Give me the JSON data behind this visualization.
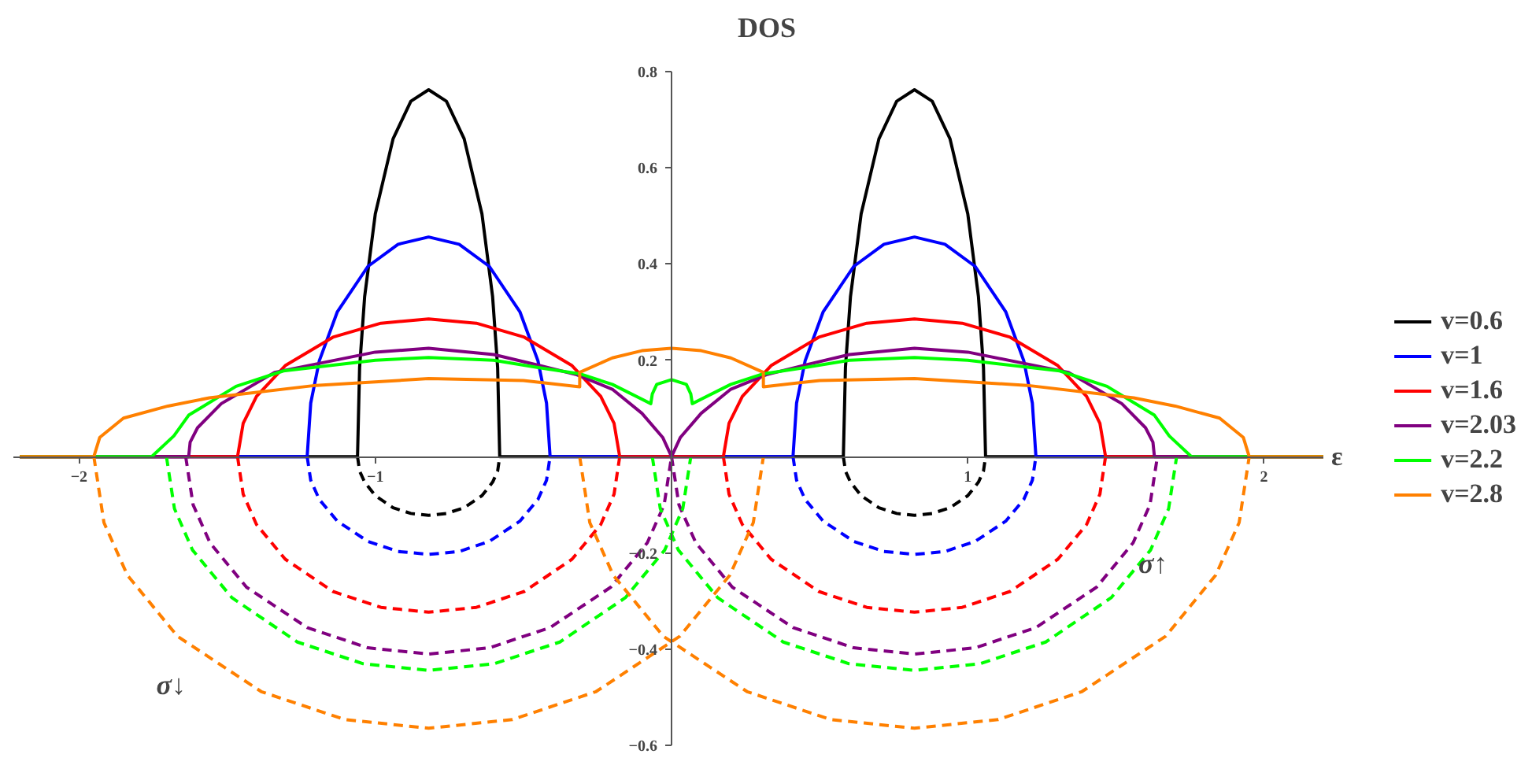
{
  "chart_data": {
    "type": "line",
    "xlabel": "ε",
    "ylabel": "DOS",
    "xlim": [
      -2.22,
      2.2
    ],
    "ylim": [
      -0.6,
      0.8
    ],
    "xticks": [
      {
        "value": -2,
        "label": "−2"
      },
      {
        "value": -1,
        "label": "−1"
      },
      1,
      2
    ],
    "yticks": [
      {
        "value": -0.6,
        "label": "−0.6"
      },
      {
        "value": -0.4,
        "label": "−0.4"
      },
      {
        "value": -0.2,
        "label": "−0.2"
      },
      0.2,
      0.4,
      0.6,
      0.8
    ],
    "legend": "right",
    "marker": "none",
    "annotations": [
      "σ↓",
      "σ↑"
    ],
    "series": [
      {
        "name": "v=0.6",
        "color": "#000000",
        "line_style": "solid",
        "x": [
          -2.2,
          -1.06,
          -1.053,
          -1.036,
          -1.0,
          -0.94,
          -0.88,
          -0.82,
          -0.76,
          -0.7,
          -0.64,
          -0.604,
          -0.587,
          -0.58,
          0.58,
          0.587,
          0.604,
          0.64,
          0.7,
          0.76,
          0.82,
          0.88,
          0.94,
          1.0,
          1.036,
          1.053,
          1.06,
          2.2
        ],
        "values": [
          0,
          0,
          0.185,
          0.332,
          0.504,
          0.66,
          0.738,
          0.762,
          0.738,
          0.66,
          0.504,
          0.332,
          0.185,
          0,
          0,
          0.185,
          0.332,
          0.504,
          0.66,
          0.738,
          0.762,
          0.738,
          0.66,
          0.504,
          0.332,
          0.185,
          0,
          0
        ]
      },
      {
        "name": "v=1",
        "color": "#0000ff",
        "line_style": "solid",
        "x": [
          -2.2,
          -1.23,
          -1.218,
          -1.189,
          -1.128,
          -1.025,
          -0.923,
          -0.82,
          -0.717,
          -0.615,
          -0.512,
          -0.451,
          -0.422,
          -0.41,
          0.41,
          0.422,
          0.451,
          0.512,
          0.615,
          0.717,
          0.82,
          0.923,
          1.025,
          1.128,
          1.189,
          1.218,
          1.23,
          2.2
        ],
        "values": [
          0,
          0,
          0.111,
          0.199,
          0.301,
          0.395,
          0.441,
          0.456,
          0.441,
          0.395,
          0.301,
          0.199,
          0.111,
          0,
          0,
          0.111,
          0.199,
          0.301,
          0.395,
          0.441,
          0.456,
          0.441,
          0.395,
          0.301,
          0.199,
          0.111,
          0,
          0
        ]
      },
      {
        "name": "v=1.6",
        "color": "#ff0000",
        "line_style": "solid",
        "x": [
          -2.2,
          -1.465,
          -1.446,
          -1.401,
          -1.304,
          -1.143,
          -0.981,
          -0.82,
          -0.659,
          -0.497,
          -0.336,
          -0.239,
          -0.194,
          -0.175,
          0.175,
          0.194,
          0.239,
          0.336,
          0.497,
          0.659,
          0.82,
          0.981,
          1.143,
          1.304,
          1.401,
          1.446,
          1.465,
          2.2
        ],
        "values": [
          0,
          0,
          0.069,
          0.125,
          0.189,
          0.248,
          0.277,
          0.286,
          0.277,
          0.248,
          0.189,
          0.125,
          0.069,
          0,
          0,
          0.069,
          0.125,
          0.189,
          0.248,
          0.277,
          0.286,
          0.277,
          0.248,
          0.189,
          0.125,
          0.069,
          0,
          0
        ]
      },
      {
        "name": "v=2.03",
        "color": "#800080",
        "line_style": "solid",
        "x": [
          -2.2,
          -1.63,
          -1.625,
          -1.6,
          -1.52,
          -1.34,
          -1.0,
          -0.82,
          -0.6,
          -0.45,
          -0.32,
          -0.2,
          -0.1,
          -0.03,
          0,
          0.03,
          0.1,
          0.2,
          0.32,
          0.45,
          0.6,
          0.82,
          1.0,
          1.34,
          1.52,
          1.6,
          1.625,
          1.63,
          2.2
        ],
        "values": [
          0,
          0,
          0.03,
          0.06,
          0.11,
          0.175,
          0.217,
          0.225,
          0.212,
          0.19,
          0.17,
          0.14,
          0.09,
          0.04,
          0,
          0.04,
          0.09,
          0.14,
          0.17,
          0.19,
          0.212,
          0.225,
          0.217,
          0.175,
          0.11,
          0.06,
          0.03,
          0,
          0
        ]
      },
      {
        "name": "v=2.2",
        "color": "#00ff00",
        "line_style": "solid",
        "x": [
          -2.2,
          -1.755,
          -1.68,
          -1.63,
          -1.47,
          -1.31,
          -1.0,
          -0.82,
          -0.6,
          -0.45,
          -0.31,
          -0.2,
          -0.07,
          -0.065,
          -0.05,
          0,
          0.05,
          0.065,
          0.07,
          0.2,
          0.31,
          0.45,
          0.6,
          0.82,
          1.0,
          1.31,
          1.47,
          1.63,
          1.68,
          1.755,
          2.2
        ],
        "values": [
          0,
          0,
          0.043,
          0.086,
          0.146,
          0.178,
          0.2,
          0.206,
          0.2,
          0.185,
          0.172,
          0.15,
          0.11,
          0.13,
          0.15,
          0.16,
          0.15,
          0.13,
          0.11,
          0.15,
          0.172,
          0.185,
          0.2,
          0.206,
          0.2,
          0.178,
          0.146,
          0.086,
          0.043,
          0,
          0
        ]
      },
      {
        "name": "v=2.8",
        "color": "#ff8000",
        "line_style": "solid",
        "x": [
          -2.2,
          -1.95,
          -1.93,
          -1.85,
          -1.7,
          -1.56,
          -1.2,
          -0.82,
          -0.5,
          -0.31,
          -0.31,
          -0.2,
          -0.1,
          0,
          0.1,
          0.2,
          0.31,
          0.31,
          0.5,
          0.82,
          1.2,
          1.56,
          1.7,
          1.85,
          1.93,
          1.95,
          2.2
        ],
        "values": [
          0,
          0,
          0.04,
          0.08,
          0.105,
          0.122,
          0.148,
          0.162,
          0.158,
          0.145,
          0.175,
          0.205,
          0.22,
          0.225,
          0.22,
          0.205,
          0.175,
          0.145,
          0.158,
          0.162,
          0.148,
          0.122,
          0.105,
          0.08,
          0.04,
          0,
          0
        ]
      },
      {
        "color": "#000000",
        "line_style": "dashed",
        "x": [
          -1.06,
          -1.053,
          -1.036,
          -1.0,
          -0.94,
          -0.88,
          -0.82,
          -0.76,
          -0.7,
          -0.64,
          -0.604,
          -0.587,
          -0.58,
          null,
          0.58,
          0.587,
          0.604,
          0.64,
          0.7,
          0.76,
          0.82,
          0.88,
          0.94,
          1.0,
          1.036,
          1.053,
          1.06
        ],
        "values": [
          0,
          -0.03,
          -0.053,
          -0.081,
          -0.106,
          -0.118,
          -0.122,
          -0.118,
          -0.106,
          -0.081,
          -0.053,
          -0.03,
          0,
          null,
          0,
          -0.03,
          -0.053,
          -0.081,
          -0.106,
          -0.118,
          -0.122,
          -0.118,
          -0.106,
          -0.081,
          -0.053,
          -0.03,
          0
        ]
      },
      {
        "color": "#0000ff",
        "line_style": "dashed",
        "x": [
          -1.23,
          -1.218,
          -1.189,
          -1.128,
          -1.025,
          -0.923,
          -0.82,
          -0.717,
          -0.615,
          -0.512,
          -0.451,
          -0.422,
          -0.41,
          null,
          0.41,
          0.422,
          0.451,
          0.512,
          0.615,
          0.717,
          0.82,
          0.923,
          1.025,
          1.128,
          1.189,
          1.218,
          1.23
        ],
        "values": [
          0,
          -0.049,
          -0.089,
          -0.134,
          -0.176,
          -0.197,
          -0.203,
          -0.197,
          -0.176,
          -0.134,
          -0.089,
          -0.049,
          0,
          null,
          0,
          -0.049,
          -0.089,
          -0.134,
          -0.176,
          -0.197,
          -0.203,
          -0.197,
          -0.176,
          -0.134,
          -0.089,
          -0.049,
          0
        ]
      },
      {
        "color": "#ff0000",
        "line_style": "dashed",
        "x": [
          -1.465,
          -1.446,
          -1.401,
          -1.304,
          -1.143,
          -0.981,
          -0.82,
          -0.659,
          -0.497,
          -0.336,
          -0.239,
          -0.194,
          -0.175,
          null,
          0.175,
          0.194,
          0.239,
          0.336,
          0.497,
          0.659,
          0.82,
          0.981,
          1.143,
          1.304,
          1.401,
          1.446,
          1.465
        ],
        "values": [
          0,
          -0.078,
          -0.141,
          -0.213,
          -0.28,
          -0.313,
          -0.323,
          -0.313,
          -0.28,
          -0.213,
          -0.141,
          -0.078,
          0,
          null,
          0,
          -0.078,
          -0.141,
          -0.213,
          -0.28,
          -0.313,
          -0.323,
          -0.313,
          -0.28,
          -0.213,
          -0.141,
          -0.078,
          0
        ]
      },
      {
        "color": "#800080",
        "line_style": "dashed",
        "x": [
          -1.64,
          -1.615,
          -1.558,
          -1.435,
          -1.23,
          -1.025,
          -0.82,
          -0.615,
          -0.41,
          -0.205,
          -0.082,
          -0.025,
          0,
          null,
          0,
          0.025,
          0.082,
          0.205,
          0.41,
          0.615,
          0.82,
          1.025,
          1.23,
          1.435,
          1.558,
          1.615,
          1.64
        ],
        "values": [
          0,
          -0.1,
          -0.179,
          -0.271,
          -0.355,
          -0.397,
          -0.41,
          -0.397,
          -0.355,
          -0.271,
          -0.179,
          -0.1,
          0,
          null,
          0,
          -0.1,
          -0.179,
          -0.271,
          -0.355,
          -0.397,
          -0.41,
          -0.397,
          -0.355,
          -0.271,
          -0.179,
          -0.1,
          0
        ]
      },
      {
        "color": "#00ff00",
        "line_style": "dashed",
        "x": [
          -1.705,
          -1.678,
          -1.617,
          -1.484,
          -1.263,
          -1.041,
          -0.82,
          -0.599,
          -0.377,
          -0.156,
          -0.023,
          0.038,
          0.065,
          null,
          -0.065,
          -0.038,
          0.023,
          0.156,
          0.377,
          0.599,
          0.82,
          1.041,
          1.263,
          1.484,
          1.617,
          1.678,
          1.705
        ],
        "values": [
          0,
          -0.108,
          -0.194,
          -0.293,
          -0.385,
          -0.43,
          -0.444,
          -0.43,
          -0.385,
          -0.293,
          -0.194,
          -0.108,
          0,
          null,
          0,
          -0.108,
          -0.194,
          -0.293,
          -0.385,
          -0.43,
          -0.444,
          -0.43,
          -0.385,
          -0.293,
          -0.194,
          -0.108,
          0
        ]
      },
      {
        "color": "#ff8000",
        "line_style": "dashed",
        "x": [
          -1.95,
          -1.916,
          -1.837,
          -1.668,
          -1.385,
          -1.103,
          -0.82,
          -0.537,
          -0.255,
          0.028,
          0.197,
          0.276,
          0.31,
          null,
          -0.31,
          -0.276,
          -0.197,
          -0.028,
          0.255,
          0.537,
          0.82,
          1.103,
          1.385,
          1.668,
          1.837,
          1.916,
          1.95
        ],
        "values": [
          0,
          -0.137,
          -0.246,
          -0.373,
          -0.488,
          -0.546,
          -0.564,
          -0.546,
          -0.488,
          -0.373,
          -0.246,
          -0.137,
          0,
          null,
          0,
          -0.137,
          -0.246,
          -0.373,
          -0.488,
          -0.546,
          -0.564,
          -0.546,
          -0.488,
          -0.373,
          -0.246,
          -0.137,
          0
        ]
      }
    ]
  }
}
